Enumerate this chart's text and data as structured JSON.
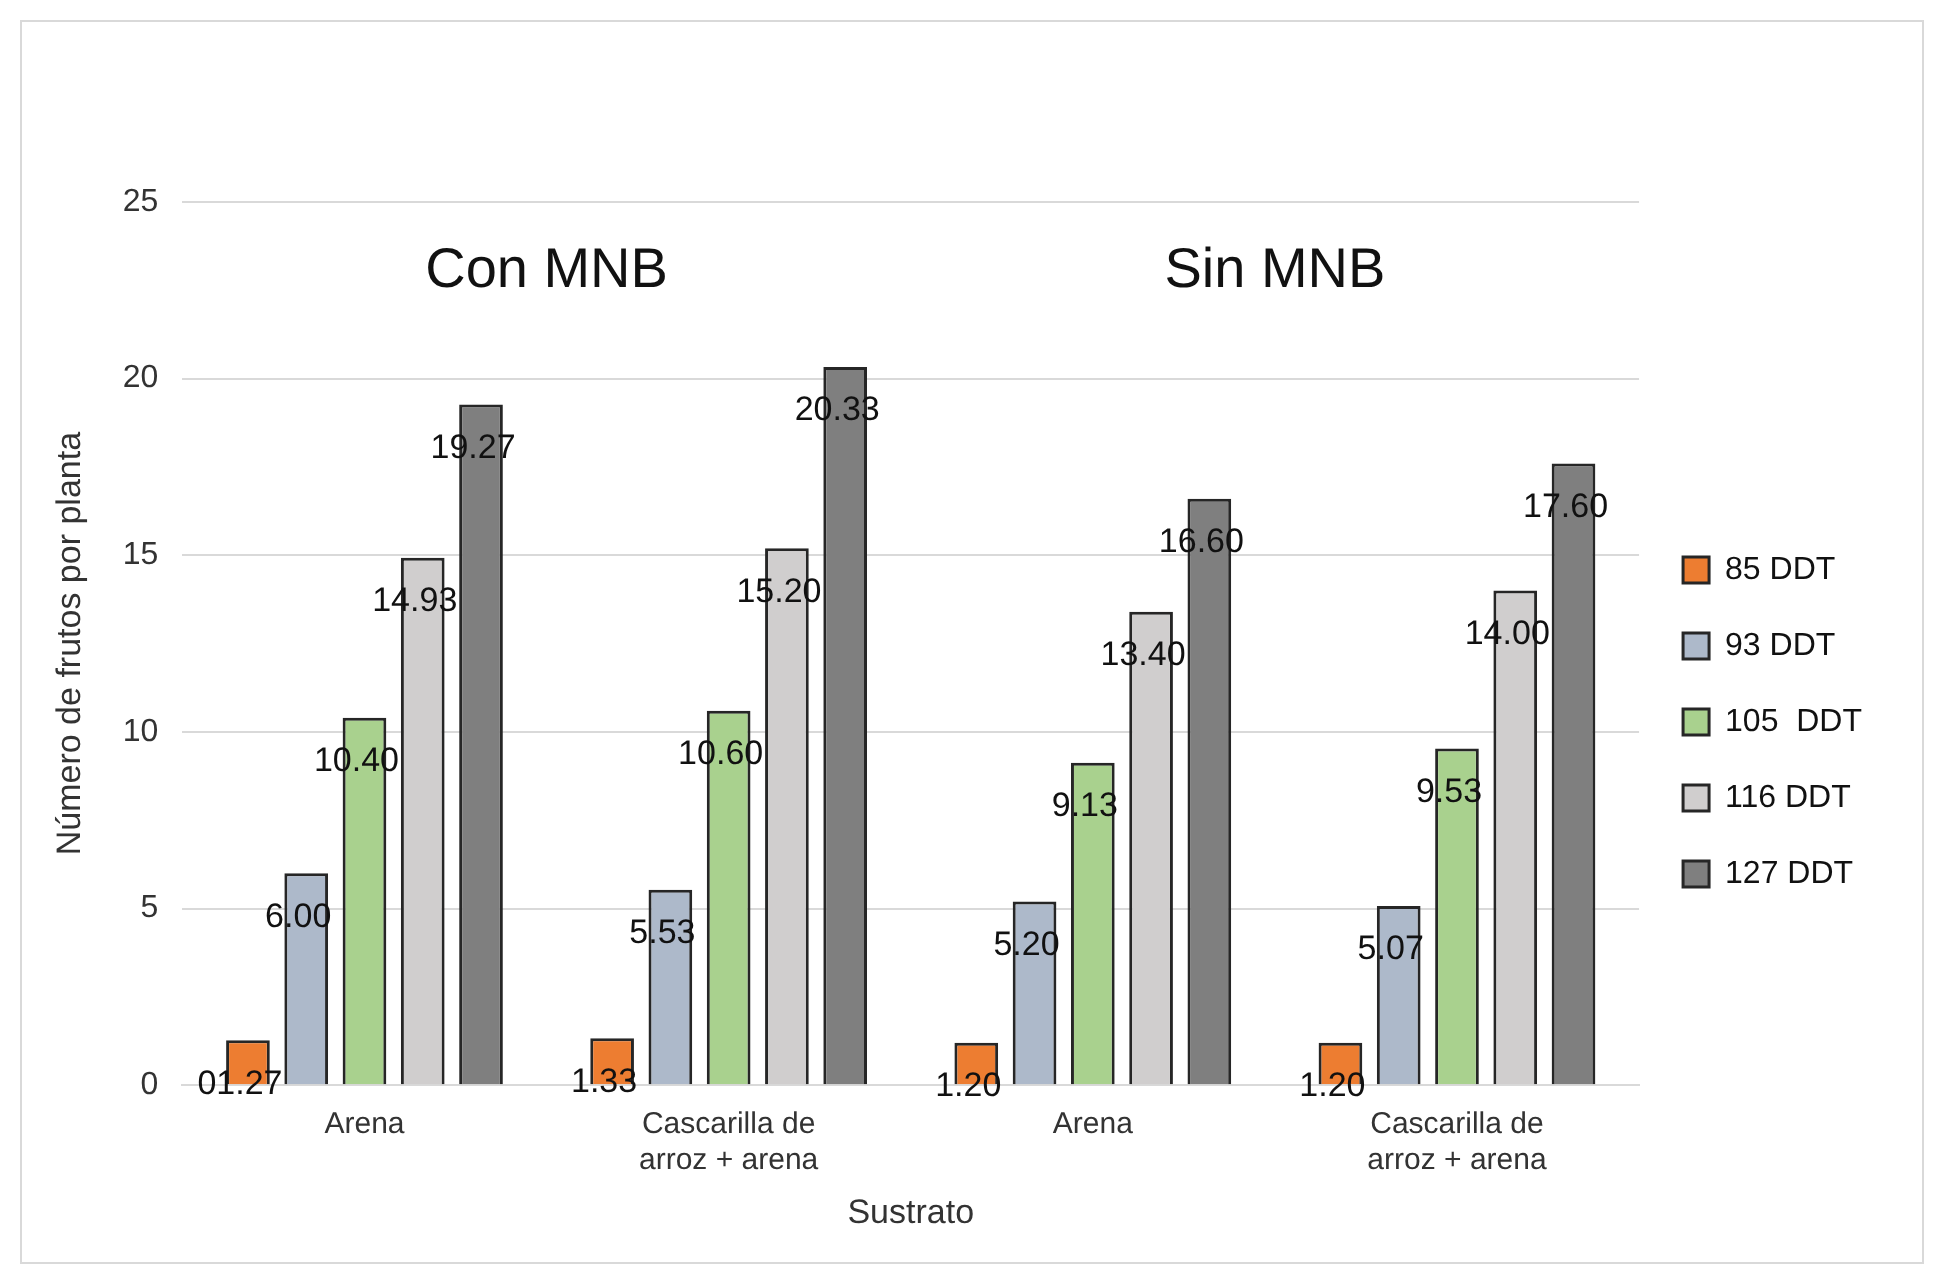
{
  "chart_data": {
    "type": "bar",
    "xlabel": "Sustrato",
    "ylabel": "Número de frutos por planta",
    "categories": [
      "Arena",
      "Cascarilla de arroz + arena",
      "Arena",
      "Cascarilla de arroz + arena"
    ],
    "series": [
      {
        "name": "85 DDT",
        "color": "#ed7d31",
        "values": [
          1.27,
          1.33,
          1.2,
          1.2
        ],
        "value_labels": [
          "01.27",
          "1.33",
          "1.20",
          "1.20"
        ]
      },
      {
        "name": "93 DDT",
        "color": "#adb9ca",
        "values": [
          6.0,
          5.53,
          5.2,
          5.07
        ],
        "value_labels": [
          "6.00",
          "5.53",
          "5.20",
          "5.07"
        ]
      },
      {
        "name": "105  DDT",
        "color": "#a9d18e",
        "values": [
          10.4,
          10.6,
          9.13,
          9.53
        ],
        "value_labels": [
          "10.40",
          "10.60",
          "9.13",
          "9.53"
        ]
      },
      {
        "name": "116 DDT",
        "color": "#d0cece",
        "values": [
          14.93,
          15.2,
          13.4,
          14.0
        ],
        "value_labels": [
          "14.93",
          "15.20",
          "13.40",
          "14.00"
        ]
      },
      {
        "name": "127 DDT",
        "color": "#7f7f7f",
        "values": [
          19.27,
          20.33,
          16.6,
          17.6
        ],
        "value_labels": [
          "19.27",
          "20.33",
          "16.60",
          "17.60"
        ]
      }
    ],
    "annotations": [
      "Con MNB",
      "Sin MNB"
    ],
    "ylim": [
      0,
      25
    ],
    "yticks": [
      0,
      5,
      10,
      15,
      20,
      25
    ],
    "grid": "y",
    "legend": "right"
  }
}
